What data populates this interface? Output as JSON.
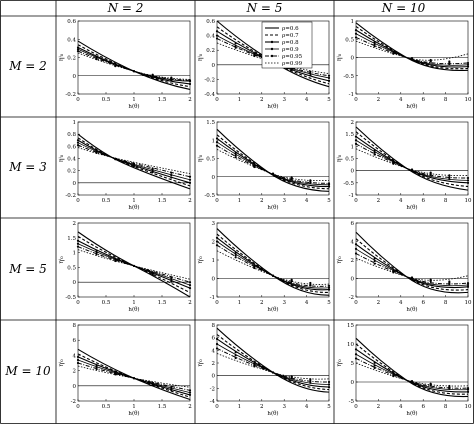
{
  "figure": {
    "col_headers": [
      "N = 2",
      "N = 5",
      "N = 10"
    ],
    "row_headers": [
      "M = 2",
      "M = 3",
      "M = 5",
      "M = 10"
    ],
    "legend": [
      "ρ=0.6",
      "ρ=0.7",
      "ρ=0.8",
      "ρ=0.9",
      "ρ=0.95",
      "ρ=0.99"
    ]
  },
  "chart_data": {
    "type": "line",
    "xlabel": "h(θ)",
    "ylabel": "ηⁱ₀",
    "series_names": [
      "ρ=0.6",
      "ρ=0.7",
      "ρ=0.8",
      "ρ=0.9",
      "ρ=0.95",
      "ρ=0.99"
    ],
    "panels": [
      {
        "M": 2,
        "N": 2,
        "xlim": [
          0,
          2
        ],
        "ylim": [
          -0.2,
          0.6
        ],
        "xticks": [
          0,
          0.5,
          1,
          1.5,
          2
        ],
        "yticks": [
          -0.2,
          0,
          0.2,
          0.4,
          0.6
        ],
        "xticklabels": [
          "0",
          "0.5",
          "1",
          "1.5",
          "2"
        ],
        "yticklabels": [
          "-0.2",
          "0",
          "0.2",
          "0.4",
          "0.6"
        ],
        "cross_x": 1.0,
        "cross_y": 0.05,
        "y_start": [
          0.38,
          0.34,
          0.31,
          0.29,
          0.27,
          0.25
        ],
        "y_end": [
          -0.15,
          -0.12,
          -0.09,
          -0.06,
          -0.05,
          -0.04
        ]
      },
      {
        "M": 2,
        "N": 5,
        "xlim": [
          0,
          5
        ],
        "ylim": [
          -0.4,
          0.6
        ],
        "xticks": [
          0,
          1,
          2,
          3,
          4,
          5
        ],
        "yticks": [
          -0.4,
          -0.2,
          0,
          0.2,
          0.4,
          0.6
        ],
        "xticklabels": [
          "0",
          "1",
          "2",
          "3",
          "4",
          "5"
        ],
        "yticklabels": [
          "-0.4",
          "-0.2",
          "0",
          "0.2",
          "0.4",
          "0.6"
        ],
        "cross_x": 2.5,
        "cross_y": 0.04,
        "y_start": [
          0.6,
          0.52,
          0.46,
          0.4,
          0.36,
          0.3
        ],
        "y_end": [
          -0.3,
          -0.26,
          -0.22,
          -0.18,
          -0.15,
          -0.12
        ]
      },
      {
        "M": 2,
        "N": 10,
        "xlim": [
          0,
          10
        ],
        "ylim": [
          -1,
          1
        ],
        "xticks": [
          0,
          2,
          4,
          6,
          8,
          10
        ],
        "yticks": [
          -1,
          -0.5,
          0,
          0.5,
          1
        ],
        "xticklabels": [
          "0",
          "2",
          "4",
          "6",
          "8",
          "10"
        ],
        "yticklabels": [
          "-1",
          "-0.5",
          "0",
          "0.5",
          "1"
        ],
        "cross_x": 4.5,
        "cross_y": 0.0,
        "y_start": [
          0.95,
          0.85,
          0.75,
          0.65,
          0.55,
          0.45
        ],
        "y_end": [
          -0.35,
          -0.3,
          -0.25,
          -0.2,
          -0.15,
          0.1
        ]
      },
      {
        "M": 3,
        "N": 2,
        "xlim": [
          0,
          2
        ],
        "ylim": [
          -0.2,
          1
        ],
        "xticks": [
          0,
          0.5,
          1,
          1.5,
          2
        ],
        "yticks": [
          -0.2,
          0,
          0.2,
          0.4,
          0.6,
          0.8,
          1
        ],
        "xticklabels": [
          "0",
          "0.5",
          "1",
          "1.5",
          "2"
        ],
        "yticklabels": [
          "-0.2",
          "0",
          "0.2",
          "0.4",
          "0.6",
          "0.8",
          "1"
        ],
        "cross_x": 0.6,
        "cross_y": 0.42,
        "y_start": [
          0.8,
          0.74,
          0.7,
          0.66,
          0.62,
          0.58
        ],
        "y_end": [
          -0.1,
          -0.05,
          0.0,
          0.05,
          0.1,
          0.15
        ]
      },
      {
        "M": 3,
        "N": 5,
        "xlim": [
          0,
          5
        ],
        "ylim": [
          -0.5,
          1.5
        ],
        "xticks": [
          0,
          1,
          2,
          3,
          4,
          5
        ],
        "yticks": [
          -0.5,
          0,
          0.5,
          1,
          1.5
        ],
        "xticklabels": [
          "0",
          "1",
          "2",
          "3",
          "4",
          "5"
        ],
        "yticklabels": [
          "-0.5",
          "0",
          "0.5",
          "1",
          "1.5"
        ],
        "cross_x": 2.3,
        "cross_y": 0.12,
        "y_start": [
          1.3,
          1.15,
          1.05,
          0.95,
          0.85,
          0.75
        ],
        "y_end": [
          -0.4,
          -0.33,
          -0.27,
          -0.22,
          -0.18,
          -0.1
        ]
      },
      {
        "M": 3,
        "N": 10,
        "xlim": [
          0,
          10
        ],
        "ylim": [
          -1,
          2
        ],
        "xticks": [
          0,
          2,
          4,
          6,
          8,
          10
        ],
        "yticks": [
          -1,
          -0.5,
          0,
          0.5,
          1,
          1.5,
          2
        ],
        "xticklabels": [
          "0",
          "2",
          "4",
          "6",
          "8",
          "10"
        ],
        "yticklabels": [
          "-1",
          "-0.5",
          "0",
          "0.5",
          "1",
          "1.5",
          "2"
        ],
        "cross_x": 4.5,
        "cross_y": 0.1,
        "y_start": [
          1.8,
          1.6,
          1.4,
          1.25,
          1.1,
          0.9
        ],
        "y_end": [
          -0.8,
          -0.65,
          -0.5,
          -0.4,
          -0.3,
          -0.2
        ]
      },
      {
        "M": 5,
        "N": 2,
        "xlim": [
          0,
          2
        ],
        "ylim": [
          -0.5,
          2
        ],
        "xticks": [
          0,
          0.5,
          1,
          1.5,
          2
        ],
        "yticks": [
          -0.5,
          0,
          0.5,
          1,
          1.5,
          2
        ],
        "xticklabels": [
          "0",
          "0.5",
          "1",
          "1.5",
          "2"
        ],
        "yticklabels": [
          "-0.5",
          "0",
          "0.5",
          "1",
          "1.5",
          "2"
        ],
        "cross_x": 1.0,
        "cross_y": 0.55,
        "y_start": [
          1.7,
          1.55,
          1.4,
          1.3,
          1.2,
          1.1
        ],
        "y_end": [
          -0.5,
          -0.35,
          -0.2,
          -0.1,
          0.0,
          0.1
        ]
      },
      {
        "M": 5,
        "N": 5,
        "xlim": [
          0,
          5
        ],
        "ylim": [
          -1,
          3
        ],
        "xticks": [
          0,
          1,
          2,
          3,
          4,
          5
        ],
        "yticks": [
          -1,
          0,
          1,
          2,
          3
        ],
        "xticklabels": [
          "0",
          "1",
          "2",
          "3",
          "4",
          "5"
        ],
        "yticklabels": [
          "-1",
          "0",
          "1",
          "2",
          "3"
        ],
        "cross_x": 2.5,
        "cross_y": 0.15,
        "y_start": [
          2.7,
          2.4,
          2.2,
          2.0,
          1.8,
          1.5
        ],
        "y_end": [
          -0.9,
          -0.75,
          -0.6,
          -0.5,
          -0.4,
          -0.3
        ]
      },
      {
        "M": 5,
        "N": 10,
        "xlim": [
          0,
          10
        ],
        "ylim": [
          -2,
          6
        ],
        "xticks": [
          0,
          2,
          4,
          6,
          8,
          10
        ],
        "yticks": [
          -2,
          0,
          2,
          4,
          6
        ],
        "xticklabels": [
          "0",
          "2",
          "4",
          "6",
          "8",
          "10"
        ],
        "yticklabels": [
          "-2",
          "0",
          "2",
          "4",
          "6"
        ],
        "cross_x": 4.5,
        "cross_y": 0.2,
        "y_start": [
          5.0,
          4.3,
          3.7,
          3.2,
          2.7,
          2.2
        ],
        "y_end": [
          -1.5,
          -1.2,
          -0.9,
          -0.7,
          -0.5,
          0.3
        ]
      },
      {
        "M": 10,
        "N": 2,
        "xlim": [
          0,
          2
        ],
        "ylim": [
          -2,
          8
        ],
        "xticks": [
          0,
          0.5,
          1,
          1.5,
          2
        ],
        "yticks": [
          -2,
          0,
          2,
          4,
          6,
          8
        ],
        "xticklabels": [
          "0",
          "0.5",
          "1",
          "1.5",
          "2"
        ],
        "yticklabels": [
          "-2",
          "0",
          "2",
          "4",
          "6",
          "8"
        ],
        "cross_x": 1.0,
        "cross_y": 1.0,
        "y_start": [
          4.8,
          4.2,
          3.8,
          3.4,
          3.0,
          2.6
        ],
        "y_end": [
          -1.8,
          -1.5,
          -1.2,
          -0.9,
          -0.6,
          -0.2
        ]
      },
      {
        "M": 10,
        "N": 5,
        "xlim": [
          0,
          5
        ],
        "ylim": [
          -4,
          8
        ],
        "xticks": [
          0,
          1,
          2,
          3,
          4,
          5
        ],
        "yticks": [
          -4,
          -2,
          0,
          2,
          4,
          6,
          8
        ],
        "xticklabels": [
          "0",
          "1",
          "2",
          "3",
          "4",
          "5"
        ],
        "yticklabels": [
          "-4",
          "-2",
          "0",
          "2",
          "4",
          "6",
          "8"
        ],
        "cross_x": 2.5,
        "cross_y": 0.5,
        "y_start": [
          7.5,
          6.5,
          5.8,
          5.0,
          4.3,
          3.5
        ],
        "y_end": [
          -2.6,
          -2.2,
          -1.8,
          -1.4,
          -1.0,
          -0.5
        ]
      },
      {
        "M": 10,
        "N": 10,
        "xlim": [
          0,
          10
        ],
        "ylim": [
          -5,
          15
        ],
        "xticks": [
          0,
          2,
          4,
          6,
          8,
          10
        ],
        "yticks": [
          -5,
          0,
          5,
          10,
          15
        ],
        "xticklabels": [
          "0",
          "2",
          "4",
          "6",
          "8",
          "10"
        ],
        "yticklabels": [
          "-5",
          "0",
          "5",
          "10",
          "15"
        ],
        "cross_x": 4.5,
        "cross_y": 0.5,
        "y_start": [
          11.5,
          10.0,
          8.6,
          7.3,
          6.2,
          5.0
        ],
        "y_end": [
          -3.8,
          -3.2,
          -2.6,
          -2.0,
          -1.6,
          -1.0
        ]
      }
    ]
  }
}
